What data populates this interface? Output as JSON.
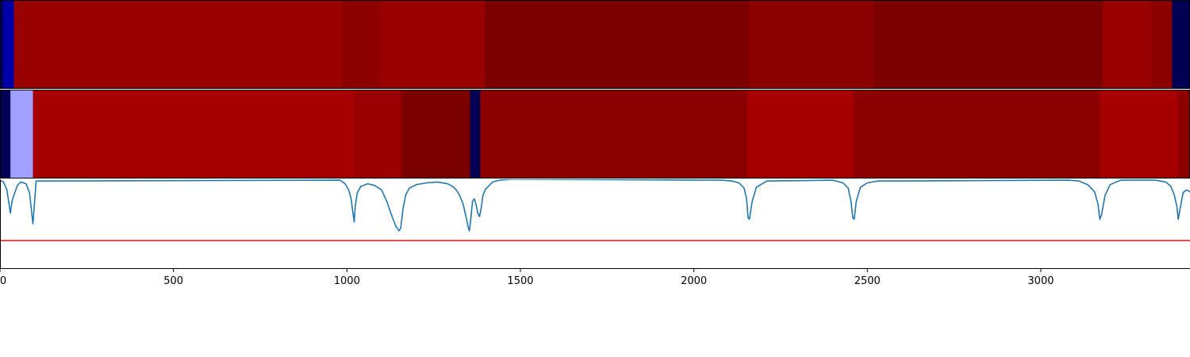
{
  "chart_data": [
    {
      "type": "heatmap",
      "xlim": [
        0,
        3430
      ],
      "segments": [
        {
          "x0": 0,
          "x1": 10,
          "color": "#000066"
        },
        {
          "x0": 10,
          "x1": 40,
          "color": "#0000aa"
        },
        {
          "x0": 40,
          "x1": 990,
          "color": "#990000"
        },
        {
          "x0": 990,
          "x1": 1095,
          "color": "#8c0000"
        },
        {
          "x0": 1095,
          "x1": 1397,
          "color": "#990000"
        },
        {
          "x0": 1397,
          "x1": 2158,
          "color": "#7d0000"
        },
        {
          "x0": 2158,
          "x1": 2518,
          "color": "#8c0000"
        },
        {
          "x0": 2518,
          "x1": 3178,
          "color": "#7d0000"
        },
        {
          "x0": 3178,
          "x1": 3318,
          "color": "#990000"
        },
        {
          "x0": 3318,
          "x1": 3378,
          "color": "#8c0000"
        },
        {
          "x0": 3378,
          "x1": 3430,
          "color": "#000055"
        }
      ]
    },
    {
      "type": "heatmap",
      "xlim": [
        0,
        3430
      ],
      "segments": [
        {
          "x0": 0,
          "x1": 30,
          "color": "#000055"
        },
        {
          "x0": 30,
          "x1": 95,
          "color": "#a0a0ff"
        },
        {
          "x0": 95,
          "x1": 1020,
          "color": "#a60000"
        },
        {
          "x0": 1020,
          "x1": 1157,
          "color": "#990000"
        },
        {
          "x0": 1157,
          "x1": 1355,
          "color": "#7d0000"
        },
        {
          "x0": 1355,
          "x1": 1384,
          "color": "#000055"
        },
        {
          "x0": 1384,
          "x1": 2155,
          "color": "#8c0000"
        },
        {
          "x0": 2155,
          "x1": 2460,
          "color": "#a60000"
        },
        {
          "x0": 2460,
          "x1": 3170,
          "color": "#8c0000"
        },
        {
          "x0": 3170,
          "x1": 3394,
          "color": "#a60000"
        },
        {
          "x0": 3394,
          "x1": 3430,
          "color": "#8c0000"
        }
      ]
    },
    {
      "type": "line",
      "xlim": [
        0,
        3430
      ],
      "ylim": [
        0,
        1
      ],
      "x_ticks": [
        0,
        500,
        1000,
        1500,
        2000,
        2500,
        3000
      ],
      "x_tick_labels": [
        "0",
        "500",
        "1000",
        "1500",
        "2000",
        "2500",
        "3000"
      ],
      "series": [
        {
          "color": "#1f77b4",
          "x": [
            0,
            10,
            20,
            30,
            35,
            40,
            50,
            60,
            75,
            85,
            95,
            98,
            104,
            980,
            995,
            1005,
            1012,
            1018,
            1021,
            1024,
            1030,
            1040,
            1060,
            1080,
            1100,
            1115,
            1130,
            1140,
            1150,
            1155,
            1158,
            1162,
            1170,
            1180,
            1200,
            1230,
            1260,
            1290,
            1305,
            1315,
            1325,
            1335,
            1345,
            1350,
            1353,
            1357,
            1362,
            1367,
            1372,
            1377,
            1382,
            1387,
            1392,
            1400,
            1410,
            1420,
            1440,
            1470,
            1500,
            2080,
            2110,
            2130,
            2145,
            2152,
            2156,
            2160,
            2168,
            2180,
            2210,
            2400,
            2430,
            2445,
            2453,
            2458,
            2462,
            2468,
            2480,
            2500,
            2530,
            3080,
            3110,
            3135,
            3155,
            3165,
            3170,
            3175,
            3185,
            3200,
            3230,
            3330,
            3360,
            3375,
            3385,
            3392,
            3396,
            3402,
            3410,
            3420,
            3430
          ],
          "y": [
            0.99,
            0.97,
            0.88,
            0.62,
            0.76,
            0.82,
            0.93,
            0.97,
            0.95,
            0.85,
            0.5,
            0.66,
            0.98,
            0.99,
            0.95,
            0.88,
            0.78,
            0.6,
            0.52,
            0.7,
            0.85,
            0.92,
            0.95,
            0.93,
            0.88,
            0.75,
            0.58,
            0.48,
            0.42,
            0.45,
            0.55,
            0.68,
            0.83,
            0.9,
            0.94,
            0.96,
            0.97,
            0.95,
            0.92,
            0.88,
            0.82,
            0.72,
            0.55,
            0.45,
            0.42,
            0.55,
            0.75,
            0.78,
            0.72,
            0.62,
            0.58,
            0.68,
            0.82,
            0.89,
            0.93,
            0.97,
            0.99,
            1.0,
            1.0,
            0.99,
            0.98,
            0.96,
            0.9,
            0.78,
            0.57,
            0.55,
            0.75,
            0.91,
            0.98,
            0.99,
            0.96,
            0.9,
            0.75,
            0.57,
            0.55,
            0.75,
            0.91,
            0.96,
            0.98,
            0.99,
            0.98,
            0.94,
            0.86,
            0.72,
            0.55,
            0.6,
            0.82,
            0.94,
            0.99,
            0.99,
            0.97,
            0.92,
            0.82,
            0.7,
            0.55,
            0.68,
            0.85,
            0.88,
            0.86
          ]
        }
      ],
      "threshold": {
        "y": 0.31,
        "color": "#e41a1c"
      }
    }
  ]
}
